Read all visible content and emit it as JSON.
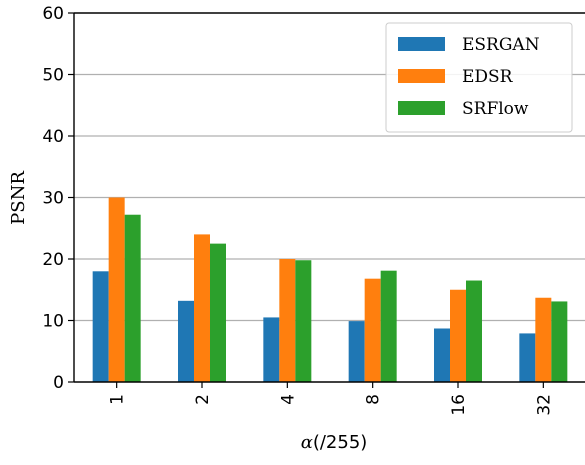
{
  "chart_data": {
    "type": "bar",
    "categories": [
      "1",
      "2",
      "4",
      "8",
      "16",
      "32"
    ],
    "series": [
      {
        "name": "ESRGAN",
        "values": [
          18.0,
          13.2,
          10.5,
          9.9,
          8.7,
          7.9
        ],
        "color": "#1f77b4"
      },
      {
        "name": "EDSR",
        "values": [
          30.0,
          24.0,
          20.0,
          16.8,
          15.0,
          13.7
        ],
        "color": "#ff7f0e"
      },
      {
        "name": "SRFlow",
        "values": [
          27.2,
          22.5,
          19.8,
          18.1,
          16.5,
          13.1
        ],
        "color": "#2ca02c"
      }
    ],
    "xlabel_symbol": "α",
    "xlabel_unit": "(/255)",
    "ylabel": "PSNR",
    "ylim": [
      0,
      60
    ],
    "yticks": [
      0,
      10,
      20,
      30,
      40,
      50,
      60
    ],
    "grid": "y",
    "legend_position": "top-right",
    "xtick_rotation": 90
  }
}
